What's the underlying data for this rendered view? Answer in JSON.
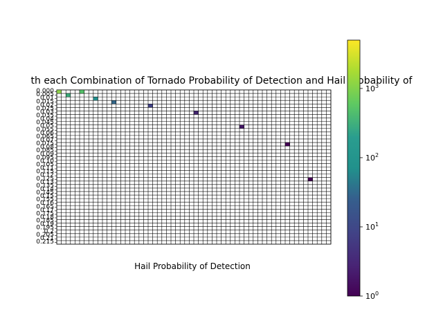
{
  "chart_data": {
    "type": "heatmap",
    "title": "th each Combination of Tornado Probability of Detection and Hail Probability of",
    "xlabel": "Hail Probability of Detection",
    "ylabel": "",
    "y_tick_labels": [
      "0.000",
      "0.005",
      "0.01",
      "0.015",
      "0.02",
      "0.025",
      "0.03",
      "0.035",
      "0.04",
      "0.045",
      "0.05",
      "0.055",
      "0.06",
      "0.065",
      "0.07",
      "0.075",
      "0.08",
      "0.085",
      "0.09",
      "0.095",
      "0.10",
      "0.105",
      "0.11",
      "0.115",
      "0.12",
      "0.125",
      "0.13",
      "0.135",
      "0.14",
      "0.145",
      "0.15",
      "0.155",
      "0.16",
      "0.165",
      "0.17",
      "0.175",
      "0.18",
      "0.185",
      "0.19",
      "0.195",
      "0.2",
      "0.205",
      "0.21",
      "0.215"
    ],
    "colorbar": {
      "scale": "log",
      "colormap": "viridis",
      "range": [
        1,
        5000
      ],
      "tick_labels": [
        "10^0",
        "10^1",
        "10^2",
        "10^3"
      ]
    },
    "cells": [
      {
        "row": 0,
        "col": 0,
        "value": 1200
      },
      {
        "row": 0,
        "col": 5,
        "value": 420
      },
      {
        "row": 1,
        "col": 2,
        "value": 180
      },
      {
        "row": 2,
        "col": 8,
        "value": 65
      },
      {
        "row": 3,
        "col": 12,
        "value": 22
      },
      {
        "row": 4,
        "col": 20,
        "value": 8
      },
      {
        "row": 6,
        "col": 30,
        "value": 3
      },
      {
        "row": 10,
        "col": 40,
        "value": 2
      },
      {
        "row": 15,
        "col": 50,
        "value": 1
      },
      {
        "row": 25,
        "col": 55,
        "value": 1
      }
    ]
  }
}
